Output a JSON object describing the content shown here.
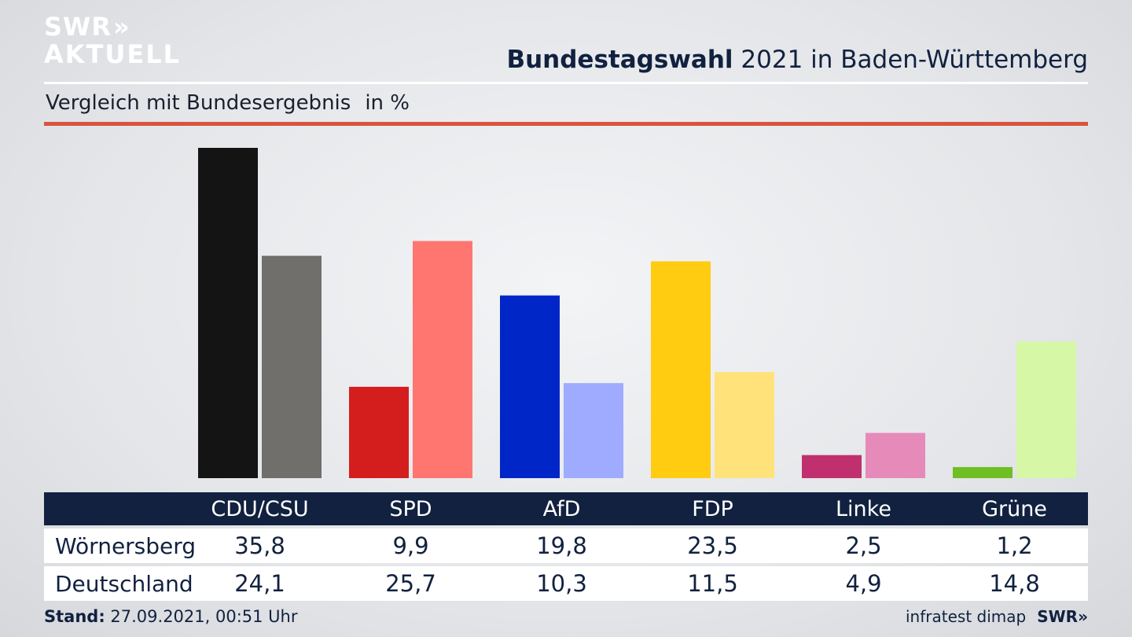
{
  "header": {
    "logo_line1": "SWR",
    "logo_arrows": "»",
    "logo_line2": "AKTUELL",
    "title_bold": "Bundestagswahl",
    "title_rest": " 2021 in Baden-Württemberg",
    "subtitle": "Vergleich mit Bundesergebnis",
    "unit": "in %"
  },
  "colors": {
    "navy": "#11213f",
    "red_rule": "#d9533f"
  },
  "chart_data": {
    "type": "bar",
    "title": "Bundestagswahl 2021 in Baden-Württemberg",
    "subtitle": "Vergleich mit Bundesergebnis",
    "unit": "in %",
    "categories": [
      "CDU/CSU",
      "SPD",
      "AfD",
      "FDP",
      "Linke",
      "Grüne"
    ],
    "series": [
      {
        "name": "Wörnersberg",
        "values": [
          35.8,
          9.9,
          19.8,
          23.5,
          2.5,
          1.2
        ],
        "colors": [
          "#141414",
          "#d41e1e",
          "#0026c8",
          "#ffcc11",
          "#c0306f",
          "#6fbe24"
        ]
      },
      {
        "name": "Deutschland",
        "values": [
          24.1,
          25.7,
          10.3,
          11.5,
          4.9,
          14.8
        ],
        "colors": [
          "#706f6c",
          "#ff7570",
          "#9eabff",
          "#ffe27a",
          "#e58ab9",
          "#d6f7a6"
        ]
      }
    ],
    "ylim": [
      0,
      35.8
    ],
    "grid": false,
    "legend": "table-below"
  },
  "table": {
    "rows": [
      {
        "label": "Wörnersberg",
        "values": [
          "35,8",
          "9,9",
          "19,8",
          "23,5",
          "2,5",
          "1,2"
        ]
      },
      {
        "label": "Deutschland",
        "values": [
          "24,1",
          "25,7",
          "10,3",
          "11,5",
          "4,9",
          "14,8"
        ]
      }
    ]
  },
  "footer": {
    "stand_label": "Stand:",
    "stand_value": " 27.09.2021, 00:51 Uhr",
    "source": "infratest dimap",
    "brand": "SWR",
    "brand_arrows": "»"
  }
}
